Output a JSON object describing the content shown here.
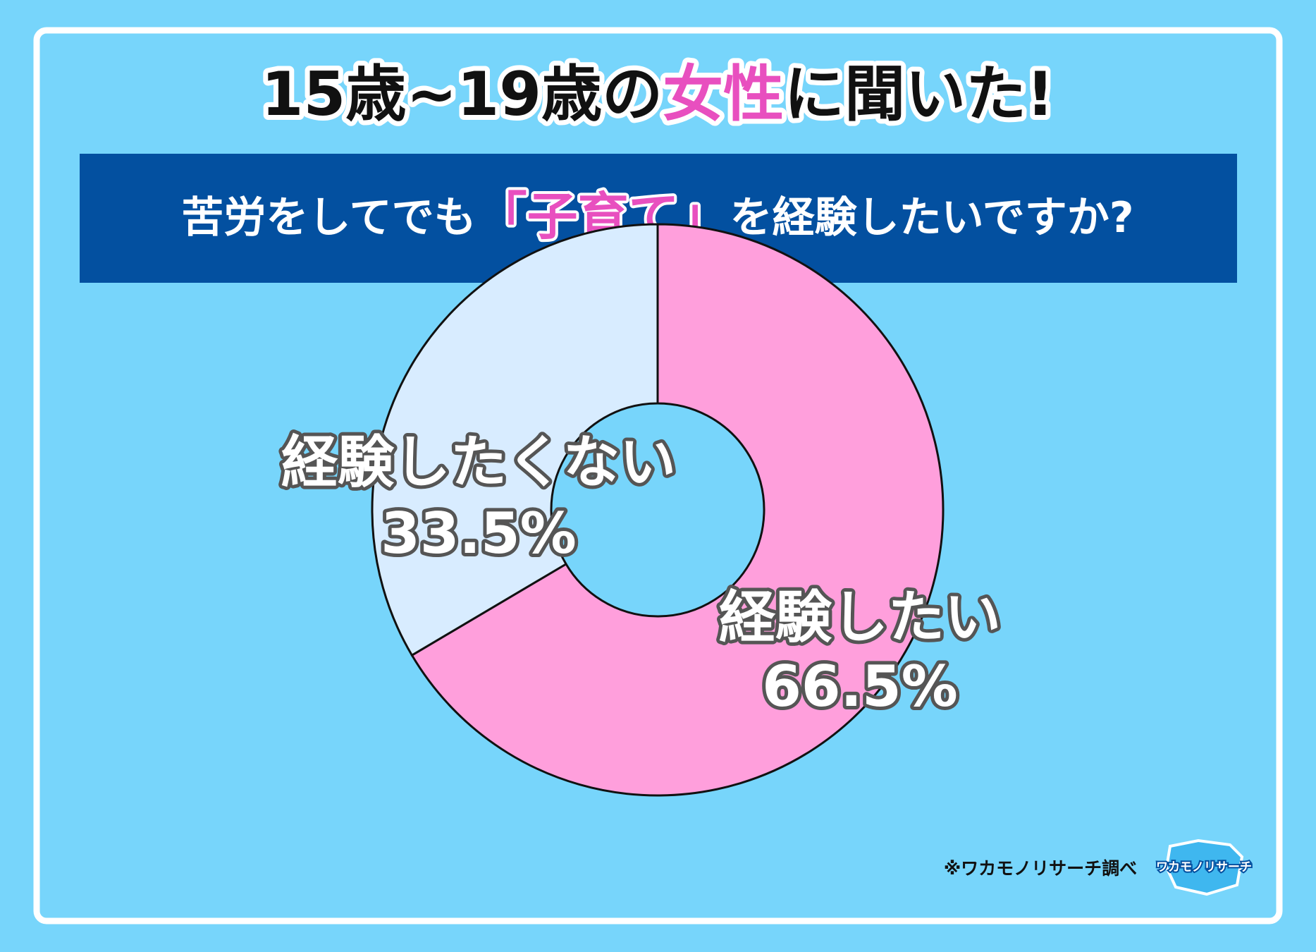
{
  "chart_data": {
    "type": "donut",
    "title_parts": [
      "15歳~19歳の",
      "女性",
      "に聞いた!"
    ],
    "subtitle_parts": [
      "苦労をしてでも",
      "「子育て」",
      "を経験したいですか?"
    ],
    "categories": [
      "経験したい",
      "経験したくない"
    ],
    "values": [
      66.5,
      33.5
    ],
    "value_labels": [
      "66.5%",
      "33.5%"
    ],
    "colors": [
      "#ff9fdc",
      "#d8ecff"
    ],
    "source": "※ワカモノリサーチ調べ",
    "logo": "ワカモノリサーチ"
  }
}
